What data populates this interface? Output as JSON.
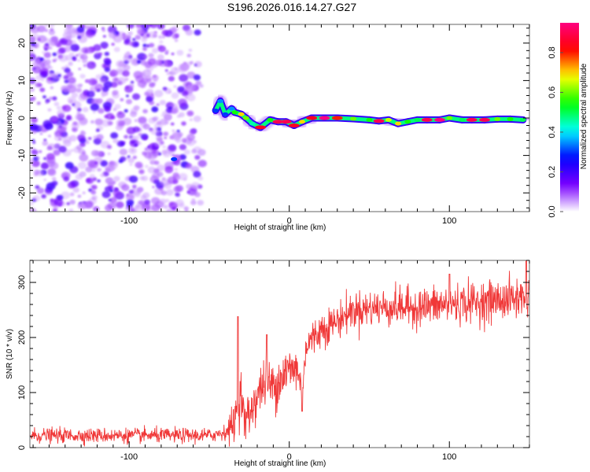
{
  "title": "S196.2026.016.14.27.G27",
  "chart_data": [
    {
      "type": "heatmap",
      "name": "spectrogram",
      "title": "S196.2026.016.14.27.G27",
      "xlabel": "Height of straight line (km)",
      "ylabel": "Frequency (Hz)",
      "xlim": [
        -162,
        150
      ],
      "ylim": [
        -25,
        25
      ],
      "x_ticks": [
        -100,
        0,
        100
      ],
      "x_tick_labels": [
        "-100",
        "0",
        "100"
      ],
      "x_minor_step": 10,
      "y_ticks": [
        -20,
        -10,
        0,
        10,
        20
      ],
      "y_tick_labels": [
        "-20",
        "-10",
        "0",
        "10",
        "20"
      ],
      "y_minor_step": 2,
      "colorbar": {
        "label": "Normalized spectral amplitude",
        "range": [
          0,
          0.95
        ],
        "ticks": [
          0.0,
          0.2,
          0.4,
          0.6,
          0.8
        ],
        "tick_labels": [
          "0.0",
          "0.2",
          "0.4",
          "0.6",
          "0.8"
        ],
        "colormap": [
          "#ffffff",
          "#7a00ff",
          "#0000ff",
          "#00ffff",
          "#00ff00",
          "#ffff00",
          "#ff0000",
          "#ff0080"
        ]
      },
      "noise_region": {
        "x_range": [
          -162,
          -50
        ],
        "y_range": [
          -25,
          25
        ],
        "amplitude_range": [
          0.02,
          0.2
        ]
      },
      "ridge": [
        {
          "x": -72,
          "y": -11,
          "amp": 0.3
        },
        {
          "x": -46,
          "y": 2,
          "amp": 0.3
        },
        {
          "x": -43,
          "y": 4.5,
          "amp": 0.35
        },
        {
          "x": -40,
          "y": 1,
          "amp": 0.3
        },
        {
          "x": -36,
          "y": 2.5,
          "amp": 0.35
        },
        {
          "x": -34,
          "y": 1.5,
          "amp": 0.55
        },
        {
          "x": -30,
          "y": 1.0,
          "amp": 0.7
        },
        {
          "x": -27,
          "y": 0.0,
          "amp": 0.6
        },
        {
          "x": -23,
          "y": -1.5,
          "amp": 0.45
        },
        {
          "x": -18,
          "y": -2.5,
          "amp": 0.85
        },
        {
          "x": -12,
          "y": -0.5,
          "amp": 0.55
        },
        {
          "x": -7,
          "y": -1.0,
          "amp": 0.9
        },
        {
          "x": -2,
          "y": -1.0,
          "amp": 0.9
        },
        {
          "x": 3,
          "y": -2.0,
          "amp": 0.85
        },
        {
          "x": 8,
          "y": -1.0,
          "amp": 0.7
        },
        {
          "x": 14,
          "y": 0.0,
          "amp": 0.85
        },
        {
          "x": 22,
          "y": 0.0,
          "amp": 0.95
        },
        {
          "x": 30,
          "y": 0.0,
          "amp": 0.8
        },
        {
          "x": 40,
          "y": -0.2,
          "amp": 0.6
        },
        {
          "x": 50,
          "y": -0.5,
          "amp": 0.55
        },
        {
          "x": 56,
          "y": -0.8,
          "amp": 0.9
        },
        {
          "x": 62,
          "y": -0.5,
          "amp": 0.65
        },
        {
          "x": 68,
          "y": -1.5,
          "amp": 0.7
        },
        {
          "x": 74,
          "y": -1.0,
          "amp": 0.55
        },
        {
          "x": 80,
          "y": -0.5,
          "amp": 0.5
        },
        {
          "x": 86,
          "y": -0.5,
          "amp": 0.9
        },
        {
          "x": 94,
          "y": -0.5,
          "amp": 0.95
        },
        {
          "x": 100,
          "y": 0.0,
          "amp": 0.6
        },
        {
          "x": 108,
          "y": -0.5,
          "amp": 0.5
        },
        {
          "x": 114,
          "y": -0.5,
          "amp": 0.9
        },
        {
          "x": 122,
          "y": -0.5,
          "amp": 0.9
        },
        {
          "x": 130,
          "y": -0.3,
          "amp": 0.6
        },
        {
          "x": 138,
          "y": -0.3,
          "amp": 0.55
        },
        {
          "x": 146,
          "y": -0.5,
          "amp": 0.5
        }
      ]
    },
    {
      "type": "line",
      "name": "snr",
      "xlabel": "Height of straight line (km)",
      "ylabel": "SNR (10 * v/v)",
      "xlim": [
        -162,
        150
      ],
      "ylim": [
        0,
        340
      ],
      "x_ticks": [
        -100,
        0,
        100
      ],
      "x_tick_labels": [
        "-100",
        "0",
        "100"
      ],
      "x_minor_step": 10,
      "y_ticks": [
        0,
        100,
        200,
        300
      ],
      "y_tick_labels": [
        "0",
        "100",
        "200",
        "300"
      ],
      "y_minor_step": 20,
      "line_color": "#ee2222",
      "trend": {
        "x": [
          -162,
          -130,
          -100,
          -70,
          -50,
          -40,
          -35,
          -32,
          -30,
          -28,
          -25,
          -20,
          -15,
          -10,
          -5,
          0,
          5,
          8,
          10,
          12,
          20,
          30,
          40,
          60,
          80,
          100,
          120,
          140,
          150
        ],
        "y": [
          22,
          22,
          22,
          22,
          22,
          28,
          40,
          80,
          100,
          45,
          60,
          95,
          120,
          110,
          130,
          140,
          145,
          100,
          175,
          190,
          215,
          230,
          250,
          255,
          255,
          260,
          265,
          270,
          275
        ]
      },
      "noise_amplitude": [
        [
          -162,
          12
        ],
        [
          -40,
          12
        ],
        [
          -35,
          35
        ],
        [
          0,
          45
        ],
        [
          10,
          30
        ],
        [
          40,
          30
        ],
        [
          150,
          35
        ]
      ],
      "spikes": [
        {
          "x": -32,
          "y": 238
        },
        {
          "x": -14,
          "y": 205
        },
        {
          "x": 100,
          "y": 315
        },
        {
          "x": 148,
          "y": 340
        },
        {
          "x": 8,
          "y": 66
        }
      ]
    }
  ]
}
